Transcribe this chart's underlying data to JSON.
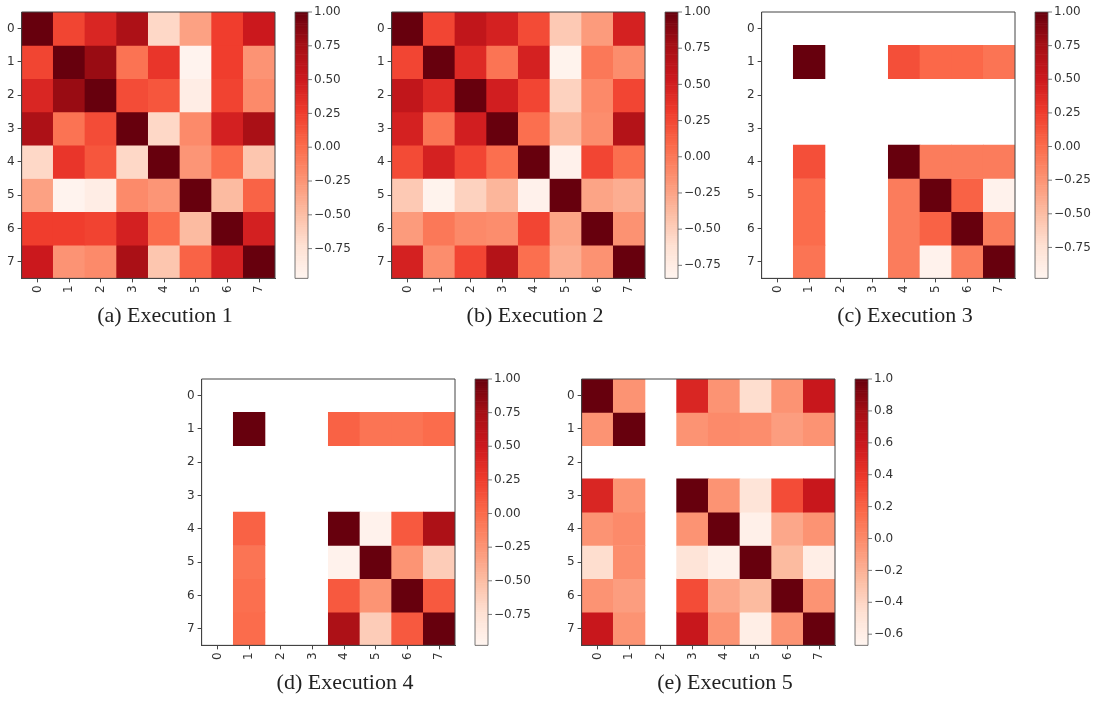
{
  "chart_data": [
    {
      "type": "heatmap",
      "title": "(a) Execution 1",
      "categories": [
        "0",
        "1",
        "2",
        "3",
        "4",
        "5",
        "6",
        "7"
      ],
      "y_categories": [
        "0",
        "1",
        "2",
        "3",
        "4",
        "5",
        "6",
        "7"
      ],
      "clim": [
        -0.97,
        1
      ],
      "cticks": [
        {
          "value": 1,
          "label": "1.00"
        },
        {
          "value": 0.75,
          "label": "0.75"
        },
        {
          "value": 0.5,
          "label": "0.50"
        },
        {
          "value": 0.25,
          "label": "0.25"
        },
        {
          "value": 0,
          "label": "0.00"
        },
        {
          "value": -0.25,
          "label": "−0.25"
        },
        {
          "value": -0.5,
          "label": "−0.50"
        },
        {
          "value": -0.75,
          "label": "−0.75"
        }
      ],
      "cells": [
        [
          1,
          0.21,
          0.41,
          0.7,
          -0.67,
          -0.32,
          0.25,
          0.51
        ],
        [
          0.21,
          1,
          0.8,
          -0.04,
          0.3,
          -0.95,
          0.25,
          -0.24
        ],
        [
          0.41,
          0.8,
          1,
          0.17,
          0.12,
          -0.88,
          0.22,
          -0.18
        ],
        [
          0.7,
          -0.04,
          0.17,
          1,
          -0.67,
          -0.18,
          0.45,
          0.72
        ],
        [
          -0.67,
          0.3,
          0.12,
          -0.67,
          1,
          -0.25,
          0,
          -0.55
        ],
        [
          -0.32,
          -0.95,
          -0.88,
          -0.18,
          -0.25,
          1,
          -0.48,
          0.05
        ],
        [
          0.25,
          0.25,
          0.22,
          0.45,
          0,
          -0.48,
          1,
          0.45
        ],
        [
          0.51,
          -0.24,
          -0.18,
          0.72,
          -0.55,
          0.05,
          0.45,
          1
        ]
      ]
    },
    {
      "type": "heatmap",
      "title": "(b) Execution 2",
      "categories": [
        "0",
        "1",
        "2",
        "3",
        "4",
        "5",
        "6",
        "7"
      ],
      "y_categories": [
        "0",
        "1",
        "2",
        "3",
        "4",
        "5",
        "6",
        "7"
      ],
      "clim": [
        -0.84,
        1
      ],
      "cticks": [
        {
          "value": 1,
          "label": "1.00"
        },
        {
          "value": 0.75,
          "label": "0.75"
        },
        {
          "value": 0.5,
          "label": "0.50"
        },
        {
          "value": 0.25,
          "label": "0.25"
        },
        {
          "value": 0,
          "label": "0.00"
        },
        {
          "value": -0.25,
          "label": "−0.25"
        },
        {
          "value": -0.5,
          "label": "−0.50"
        },
        {
          "value": -0.75,
          "label": "−0.75"
        }
      ],
      "cells": [
        [
          1,
          0.26,
          0.6,
          0.48,
          0.23,
          -0.47,
          -0.2,
          0.48
        ],
        [
          0.26,
          1,
          0.42,
          0.02,
          0.48,
          -0.82,
          0,
          -0.12
        ],
        [
          0.6,
          0.42,
          1,
          0.5,
          0.26,
          -0.52,
          -0.1,
          0.26
        ],
        [
          0.48,
          0.02,
          0.5,
          1,
          0.05,
          -0.35,
          -0.12,
          0.68
        ],
        [
          0.23,
          0.48,
          0.26,
          0.05,
          1,
          -0.8,
          0.26,
          0.05
        ],
        [
          -0.47,
          -0.82,
          -0.52,
          -0.35,
          -0.8,
          1,
          -0.25,
          -0.3
        ],
        [
          -0.2,
          0,
          -0.1,
          -0.12,
          0.26,
          -0.25,
          1,
          -0.15
        ],
        [
          0.48,
          -0.12,
          0.26,
          0.68,
          0.05,
          -0.3,
          -0.15,
          1
        ]
      ]
    },
    {
      "type": "heatmap",
      "title": "(c) Execution 3",
      "categories": [
        "0",
        "1",
        "2",
        "3",
        "4",
        "5",
        "6",
        "7"
      ],
      "y_categories": [
        "0",
        "1",
        "2",
        "3",
        "4",
        "5",
        "6",
        "7"
      ],
      "clim": [
        -0.98,
        1
      ],
      "cticks": [
        {
          "value": 1,
          "label": "1.00"
        },
        {
          "value": 0.75,
          "label": "0.75"
        },
        {
          "value": 0.5,
          "label": "0.50"
        },
        {
          "value": 0.25,
          "label": "0.25"
        },
        {
          "value": 0,
          "label": "0.00"
        },
        {
          "value": -0.25,
          "label": "−0.25"
        },
        {
          "value": -0.5,
          "label": "−0.50"
        },
        {
          "value": -0.75,
          "label": "−0.75"
        }
      ],
      "cells": [
        [
          null,
          null,
          null,
          null,
          null,
          null,
          null,
          null
        ],
        [
          null,
          1,
          null,
          null,
          0.15,
          0.02,
          0.02,
          -0.05
        ],
        [
          null,
          null,
          null,
          null,
          null,
          null,
          null,
          null
        ],
        [
          null,
          null,
          null,
          null,
          null,
          null,
          null,
          null
        ],
        [
          null,
          0.15,
          null,
          null,
          1,
          -0.1,
          -0.1,
          -0.1
        ],
        [
          null,
          0,
          null,
          null,
          -0.1,
          1,
          0.05,
          -0.95
        ],
        [
          null,
          0,
          null,
          null,
          -0.1,
          0.05,
          1,
          -0.1
        ],
        [
          null,
          -0.05,
          null,
          null,
          -0.1,
          -0.95,
          -0.1,
          1
        ]
      ]
    },
    {
      "type": "heatmap",
      "title": "(d) Execution 4",
      "categories": [
        "0",
        "1",
        "2",
        "3",
        "4",
        "5",
        "6",
        "7"
      ],
      "y_categories": [
        "0",
        "1",
        "2",
        "3",
        "4",
        "5",
        "6",
        "7"
      ],
      "clim": [
        -0.98,
        1
      ],
      "cticks": [
        {
          "value": 1,
          "label": "1.00"
        },
        {
          "value": 0.75,
          "label": "0.75"
        },
        {
          "value": 0.5,
          "label": "0.50"
        },
        {
          "value": 0.25,
          "label": "0.25"
        },
        {
          "value": 0,
          "label": "0.00"
        },
        {
          "value": -0.25,
          "label": "−0.25"
        },
        {
          "value": -0.5,
          "label": "−0.50"
        },
        {
          "value": -0.75,
          "label": "−0.75"
        }
      ],
      "cells": [
        [
          null,
          null,
          null,
          null,
          null,
          null,
          null,
          null
        ],
        [
          null,
          1,
          null,
          null,
          0.05,
          -0.05,
          -0.05,
          0
        ],
        [
          null,
          null,
          null,
          null,
          null,
          null,
          null,
          null
        ],
        [
          null,
          null,
          null,
          null,
          null,
          null,
          null,
          null
        ],
        [
          null,
          0.05,
          null,
          null,
          1,
          -0.95,
          0.1,
          0.7
        ],
        [
          null,
          -0.05,
          null,
          null,
          -0.95,
          1,
          -0.25,
          -0.6
        ],
        [
          null,
          -0.02,
          null,
          null,
          0.1,
          -0.25,
          1,
          0.1
        ],
        [
          null,
          0,
          null,
          null,
          0.7,
          -0.6,
          0.1,
          1
        ]
      ]
    },
    {
      "type": "heatmap",
      "title": "(e) Execution 5",
      "categories": [
        "0",
        "1",
        "2",
        "3",
        "4",
        "5",
        "6",
        "7"
      ],
      "y_categories": [
        "0",
        "1",
        "2",
        "3",
        "4",
        "5",
        "6",
        "7"
      ],
      "clim": [
        -0.67,
        1
      ],
      "cticks": [
        {
          "value": 1,
          "label": "1.0"
        },
        {
          "value": 0.8,
          "label": "0.8"
        },
        {
          "value": 0.6,
          "label": "0.6"
        },
        {
          "value": 0.4,
          "label": "0.4"
        },
        {
          "value": 0.2,
          "label": "0.2"
        },
        {
          "value": 0,
          "label": "0.0"
        },
        {
          "value": -0.2,
          "label": "−0.2"
        },
        {
          "value": -0.4,
          "label": "−0.4"
        },
        {
          "value": -0.6,
          "label": "−0.6"
        }
      ],
      "cells": [
        [
          1,
          -0.05,
          null,
          0.5,
          -0.05,
          -0.45,
          -0.05,
          0.6
        ],
        [
          -0.05,
          1,
          null,
          -0.05,
          0,
          -0.02,
          -0.1,
          -0.05
        ],
        [
          null,
          null,
          null,
          null,
          null,
          null,
          null,
          null
        ],
        [
          0.5,
          -0.05,
          null,
          1,
          -0.05,
          -0.5,
          0.3,
          0.6
        ],
        [
          -0.05,
          0,
          null,
          -0.05,
          1,
          -0.62,
          -0.15,
          -0.05
        ],
        [
          -0.45,
          -0.02,
          null,
          -0.5,
          -0.62,
          1,
          -0.25,
          -0.6
        ],
        [
          -0.05,
          -0.1,
          null,
          0.3,
          -0.15,
          -0.25,
          1,
          -0.05
        ],
        [
          0.6,
          -0.05,
          null,
          0.6,
          -0.05,
          -0.6,
          -0.05,
          1
        ]
      ]
    }
  ]
}
